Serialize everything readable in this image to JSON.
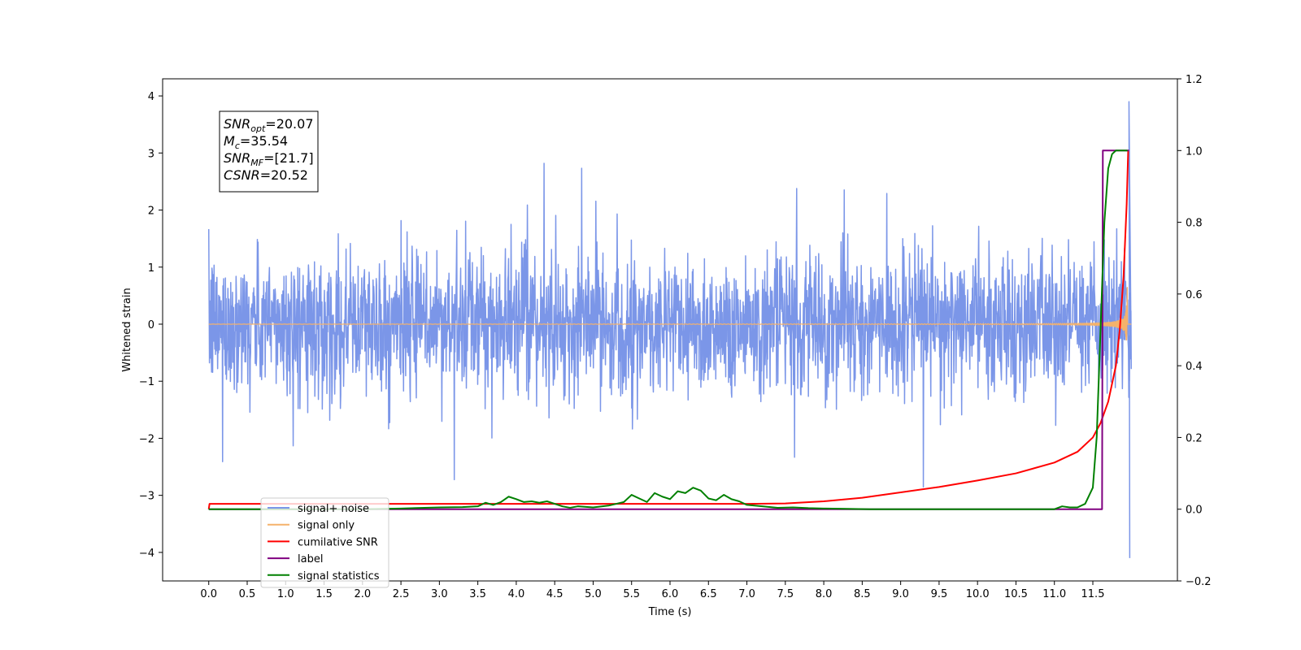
{
  "chart_data": {
    "type": "line",
    "xlabel": "Time (s)",
    "ylabel": "Whitened strain",
    "xlim": [
      -0.6,
      12.6
    ],
    "ylim_left": [
      -4.5,
      4.3
    ],
    "ylim_right": [
      -0.2,
      1.2
    ],
    "x_ticks": [
      0.0,
      0.5,
      1.0,
      1.5,
      2.0,
      2.5,
      3.0,
      3.5,
      4.0,
      4.5,
      5.0,
      5.5,
      6.0,
      6.5,
      7.0,
      7.5,
      8.0,
      8.5,
      9.0,
      9.5,
      10.0,
      10.5,
      11.0,
      11.5
    ],
    "x_tick_labels": [
      "0.0",
      "0.5",
      "1.0",
      "1.5",
      "2.0",
      "2.5",
      "3.0",
      "3.5",
      "4.0",
      "4.5",
      "5.0",
      "5.5",
      "6.0",
      "6.5",
      "7.0",
      "7.5",
      "8.0",
      "8.5",
      "9.0",
      "9.5",
      "10.0",
      "10.5",
      "11.0",
      "11.5"
    ],
    "y_ticks_left": [
      -4,
      -3,
      -2,
      -1,
      0,
      1,
      2,
      3,
      4
    ],
    "y_tick_labels_left": [
      "−4",
      "−3",
      "−2",
      "−1",
      "0",
      "1",
      "2",
      "3",
      "4"
    ],
    "y_ticks_right": [
      -0.2,
      0.0,
      0.2,
      0.4,
      0.6,
      0.8,
      1.0,
      1.2
    ],
    "y_tick_labels_right": [
      "−0.2",
      "0.0",
      "0.2",
      "0.4",
      "0.6",
      "0.8",
      "1.0",
      "1.2"
    ],
    "grid": false,
    "legend_position": "lower-left",
    "annotation": {
      "lines": [
        {
          "base": "SNR",
          "sub": "opt",
          "value": "=20.07"
        },
        {
          "base": "M",
          "sub": "c",
          "value": "=35.54"
        },
        {
          "base": "SNR",
          "sub": "MF",
          "value": "=[21.7]"
        },
        {
          "base": "CSNR",
          "sub": "",
          "value": "=20.52"
        }
      ]
    },
    "series": [
      {
        "name": "signal+ noise",
        "color": "#7b96e8",
        "axis": "left",
        "description_type": "noise",
        "x_range": [
          0.0,
          12.0
        ],
        "std": 0.6,
        "min": -4.1,
        "max": 3.9
      },
      {
        "name": "signal only",
        "color": "#f5b26b",
        "axis": "left",
        "description_type": "chirp",
        "x_range": [
          0.0,
          12.0
        ],
        "merger_time": 11.95,
        "peak_amplitude": 3.6
      },
      {
        "name": "cumilative SNR",
        "color": "#ff0000",
        "axis": "right",
        "x": [
          0.0,
          0.01,
          1.0,
          2.0,
          3.0,
          4.0,
          5.0,
          6.0,
          7.0,
          7.5,
          8.0,
          8.5,
          9.0,
          9.5,
          10.0,
          10.5,
          11.0,
          11.3,
          11.5,
          11.6,
          11.7,
          11.8,
          11.85,
          11.9,
          11.94,
          11.96,
          11.97
        ],
        "y": [
          0.0,
          0.015,
          0.015,
          0.015,
          0.015,
          0.015,
          0.015,
          0.015,
          0.015,
          0.016,
          0.022,
          0.032,
          0.047,
          0.062,
          0.08,
          0.1,
          0.13,
          0.16,
          0.2,
          0.24,
          0.3,
          0.4,
          0.5,
          0.65,
          0.85,
          1.0,
          1.0
        ]
      },
      {
        "name": "label",
        "color": "#800080",
        "axis": "right",
        "x": [
          0.0,
          11.62,
          11.63,
          11.97
        ],
        "y": [
          0.0,
          0.0,
          1.0,
          1.0
        ]
      },
      {
        "name": "signal statistics",
        "color": "#008000",
        "axis": "right",
        "x": [
          0.0,
          2.0,
          2.5,
          3.0,
          3.3,
          3.5,
          3.6,
          3.7,
          3.8,
          3.9,
          4.0,
          4.1,
          4.2,
          4.3,
          4.4,
          4.5,
          4.6,
          4.7,
          4.8,
          5.0,
          5.2,
          5.4,
          5.5,
          5.6,
          5.7,
          5.8,
          5.9,
          6.0,
          6.1,
          6.2,
          6.3,
          6.4,
          6.5,
          6.6,
          6.7,
          6.8,
          6.9,
          7.0,
          7.2,
          7.4,
          7.6,
          7.8,
          8.0,
          8.3,
          8.6,
          9.0,
          10.0,
          11.0,
          11.1,
          11.2,
          11.3,
          11.4,
          11.5,
          11.55,
          11.6,
          11.65,
          11.7,
          11.75,
          11.8,
          11.9,
          11.95
        ],
        "y": [
          0.0,
          0.0,
          0.002,
          0.005,
          0.006,
          0.008,
          0.018,
          0.012,
          0.02,
          0.035,
          0.028,
          0.02,
          0.022,
          0.018,
          0.022,
          0.015,
          0.008,
          0.004,
          0.008,
          0.005,
          0.01,
          0.02,
          0.04,
          0.03,
          0.02,
          0.045,
          0.035,
          0.028,
          0.05,
          0.045,
          0.06,
          0.052,
          0.03,
          0.025,
          0.04,
          0.028,
          0.022,
          0.012,
          0.008,
          0.004,
          0.005,
          0.003,
          0.002,
          0.001,
          0.0,
          0.0,
          0.0,
          0.0,
          0.008,
          0.005,
          0.005,
          0.015,
          0.06,
          0.2,
          0.5,
          0.8,
          0.95,
          0.99,
          1.0,
          1.0,
          1.0
        ]
      }
    ]
  }
}
